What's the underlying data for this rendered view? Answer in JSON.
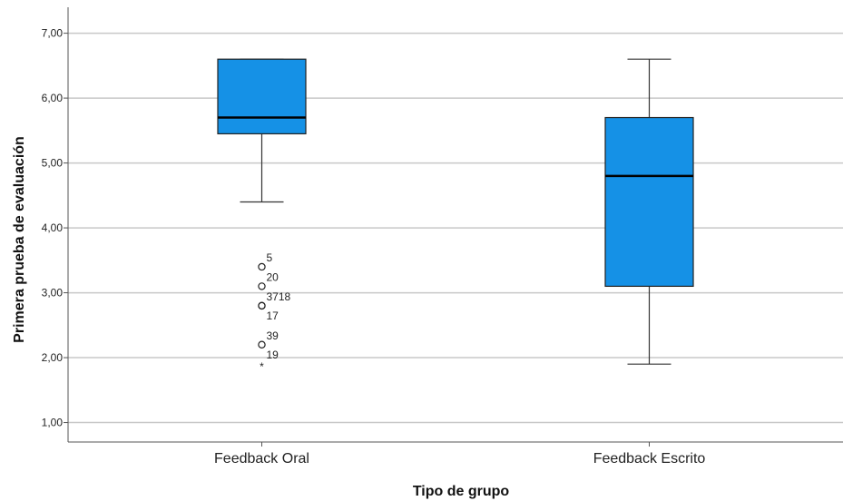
{
  "chart_data": {
    "type": "boxplot",
    "title": "",
    "xlabel": "Tipo de grupo",
    "ylabel": "Primera prueba de evaluación",
    "ylim": [
      0.7,
      7.4
    ],
    "yticks": [
      1,
      2,
      3,
      4,
      5,
      6,
      7
    ],
    "ytick_labels": [
      "1,00",
      "2,00",
      "3,00",
      "4,00",
      "5,00",
      "6,00",
      "7,00"
    ],
    "grid": "horizontal",
    "box_color": "#1591e6",
    "categories": [
      "Feedback Oral",
      "Feedback Escrito"
    ],
    "boxes": [
      {
        "category": "Feedback Oral",
        "whisker_low": 4.4,
        "q1": 5.45,
        "median": 5.7,
        "q3": 6.6,
        "whisker_high": 6.6,
        "outliers": [
          {
            "value": 3.4,
            "marker": "circle",
            "label": "5"
          },
          {
            "value": 3.1,
            "marker": "circle",
            "label": "20"
          },
          {
            "value": 2.8,
            "marker": "circle",
            "label": "3718"
          },
          {
            "value": 2.8,
            "marker": "circle",
            "label": "17"
          },
          {
            "value": 2.2,
            "marker": "circle",
            "label": "39"
          },
          {
            "value": 1.9,
            "marker": "star",
            "label": "19"
          }
        ]
      },
      {
        "category": "Feedback Escrito",
        "whisker_low": 1.9,
        "q1": 3.1,
        "median": 4.8,
        "q3": 5.7,
        "whisker_high": 6.6,
        "outliers": []
      }
    ]
  }
}
